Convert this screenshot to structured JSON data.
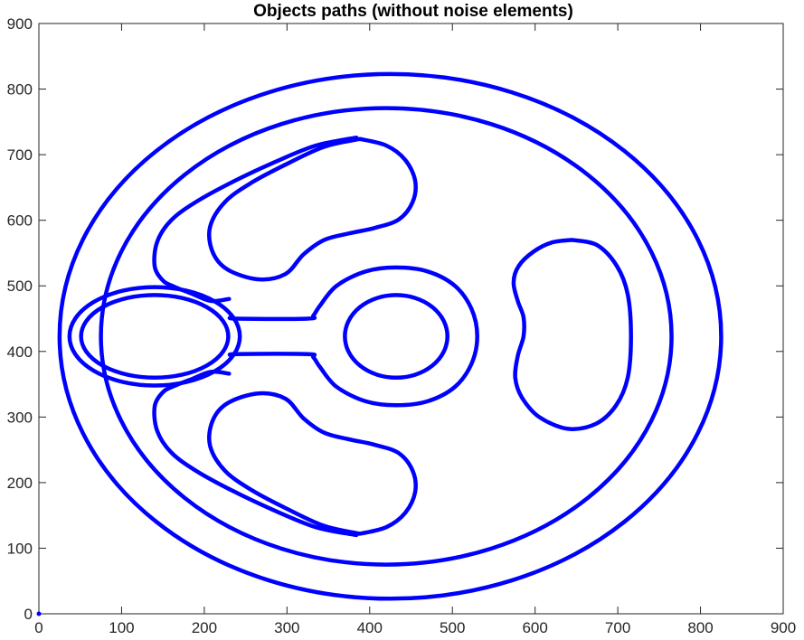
{
  "chart_data": {
    "type": "line",
    "title": "Objects paths (without noise elements)",
    "xlabel": "",
    "ylabel": "",
    "xlim": [
      0,
      900
    ],
    "ylim": [
      0,
      900
    ],
    "x_ticks": [
      0,
      100,
      200,
      300,
      400,
      500,
      600,
      700,
      800,
      900
    ],
    "y_ticks": [
      0,
      100,
      200,
      300,
      400,
      500,
      600,
      700,
      800,
      900
    ],
    "grid": false,
    "box": true,
    "line_color": "#0000ff",
    "origin_point": [
      0,
      0
    ],
    "series": [
      {
        "kind": "ellipse",
        "center": [
          425,
          423
        ],
        "radii": [
          400,
          400
        ]
      },
      {
        "kind": "ellipse",
        "center": [
          420,
          423
        ],
        "radii": [
          345,
          348
        ]
      },
      {
        "kind": "ellipse",
        "center": [
          140,
          423
        ],
        "radii": [
          103,
          75
        ]
      },
      {
        "kind": "ellipse",
        "center": [
          140,
          423
        ],
        "radii": [
          89,
          63
        ]
      },
      {
        "kind": "ellipse",
        "center": [
          432,
          423
        ],
        "radii": [
          62,
          63
        ]
      },
      {
        "kind": "path",
        "points": [
          [
            232,
            452
          ],
          [
            240,
            450
          ],
          [
            325,
            450
          ],
          [
            332,
            455
          ],
          [
            340,
            470
          ],
          [
            360,
            500
          ],
          [
            395,
            522
          ],
          [
            432,
            528
          ],
          [
            470,
            522
          ],
          [
            503,
            500
          ],
          [
            523,
            465
          ],
          [
            530,
            423
          ],
          [
            523,
            381
          ],
          [
            503,
            346
          ],
          [
            470,
            324
          ],
          [
            432,
            318
          ],
          [
            395,
            324
          ],
          [
            360,
            346
          ],
          [
            340,
            376
          ],
          [
            332,
            391
          ],
          [
            325,
            396
          ],
          [
            240,
            396
          ],
          [
            232,
            394
          ]
        ]
      },
      {
        "kind": "path",
        "points": [
          [
            388,
            724
          ],
          [
            420,
            714
          ],
          [
            443,
            692
          ],
          [
            455,
            660
          ],
          [
            452,
            628
          ],
          [
            435,
            601
          ],
          [
            405,
            588
          ],
          [
            375,
            580
          ],
          [
            345,
            570
          ],
          [
            320,
            548
          ],
          [
            298,
            518
          ],
          [
            265,
            510
          ],
          [
            228,
            525
          ],
          [
            210,
            552
          ],
          [
            207,
            590
          ],
          [
            225,
            628
          ],
          [
            258,
            658
          ],
          [
            300,
            686
          ],
          [
            345,
            712
          ],
          [
            388,
            724
          ]
        ]
      },
      {
        "kind": "path",
        "points": [
          [
            230,
            480
          ],
          [
            208,
            477
          ],
          [
            185,
            488
          ],
          [
            163,
            499
          ],
          [
            150,
            508
          ],
          [
            140,
            530
          ],
          [
            143,
            567
          ],
          [
            160,
            600
          ],
          [
            190,
            628
          ],
          [
            235,
            659
          ],
          [
            284,
            688
          ],
          [
            335,
            714
          ],
          [
            384,
            726
          ]
        ]
      },
      {
        "kind": "path",
        "points": [
          [
            388,
            122
          ],
          [
            420,
            132
          ],
          [
            443,
            154
          ],
          [
            455,
            186
          ],
          [
            452,
            218
          ],
          [
            435,
            245
          ],
          [
            405,
            258
          ],
          [
            375,
            266
          ],
          [
            345,
            276
          ],
          [
            320,
            298
          ],
          [
            298,
            328
          ],
          [
            265,
            336
          ],
          [
            228,
            321
          ],
          [
            210,
            294
          ],
          [
            207,
            256
          ],
          [
            225,
            218
          ],
          [
            258,
            188
          ],
          [
            300,
            160
          ],
          [
            345,
            134
          ],
          [
            388,
            122
          ]
        ]
      },
      {
        "kind": "path",
        "points": [
          [
            230,
            366
          ],
          [
            208,
            369
          ],
          [
            185,
            358
          ],
          [
            163,
            347
          ],
          [
            150,
            338
          ],
          [
            140,
            316
          ],
          [
            143,
            279
          ],
          [
            160,
            246
          ],
          [
            190,
            218
          ],
          [
            235,
            187
          ],
          [
            284,
            158
          ],
          [
            335,
            132
          ],
          [
            384,
            120
          ]
        ]
      },
      {
        "kind": "path",
        "points": [
          [
            645,
            570
          ],
          [
            620,
            566
          ],
          [
            598,
            552
          ],
          [
            580,
            530
          ],
          [
            574,
            505
          ],
          [
            579,
            477
          ],
          [
            586,
            452
          ],
          [
            586,
            423
          ],
          [
            579,
            393
          ],
          [
            576,
            360
          ],
          [
            584,
            330
          ],
          [
            605,
            300
          ],
          [
            640,
            282
          ],
          [
            674,
            290
          ],
          [
            698,
            318
          ],
          [
            712,
            360
          ],
          [
            716,
            423
          ],
          [
            712,
            487
          ],
          [
            699,
            530
          ],
          [
            675,
            562
          ],
          [
            645,
            570
          ]
        ]
      }
    ]
  }
}
